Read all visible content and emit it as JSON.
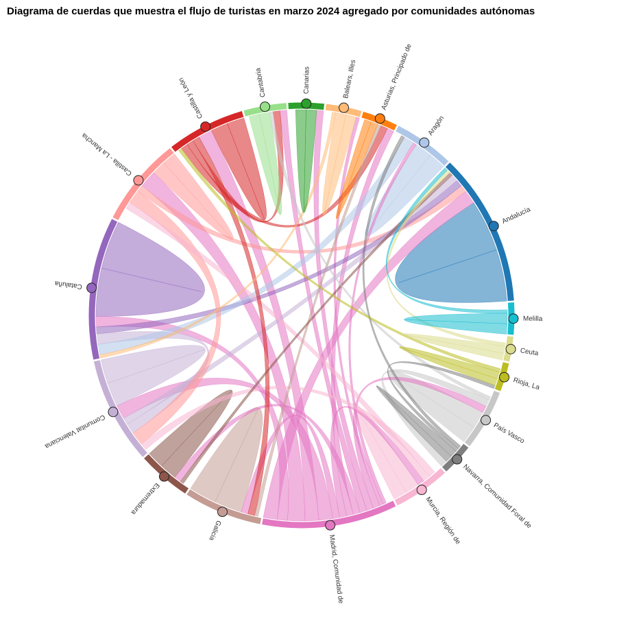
{
  "chart_data": {
    "type": "chord",
    "title": "Diagrama de cuerdas que muestra el flujo de turistas en marzo 2024 agregado por comunidades autónomas",
    "nodes": [
      {
        "name": "Andalucía",
        "color": "#1f77b4",
        "value": 43
      },
      {
        "name": "Aragón",
        "color": "#aec7e8",
        "value": 17
      },
      {
        "name": "Asturias, Principado de",
        "color": "#ff7f0e",
        "value": 10
      },
      {
        "name": "Balears, Illes",
        "color": "#ffbb78",
        "value": 10
      },
      {
        "name": "Canarias",
        "color": "#2ca02c",
        "value": 10
      },
      {
        "name": "Cantabria",
        "color": "#98df8a",
        "value": 12
      },
      {
        "name": "Castilla y León",
        "color": "#d62728",
        "value": 22
      },
      {
        "name": "Castilla - La Mancha",
        "color": "#ff9896",
        "value": 25
      },
      {
        "name": "Cataluña",
        "color": "#9467bd",
        "value": 40
      },
      {
        "name": "Comunitat Valenciana",
        "color": "#c5b0d5",
        "value": 30
      },
      {
        "name": "Extremadura",
        "color": "#8c564b",
        "value": 15
      },
      {
        "name": "Galicia",
        "color": "#c49c94",
        "value": 22
      },
      {
        "name": "Madrid, Comunidad de",
        "color": "#e377c2",
        "value": 38
      },
      {
        "name": "Murcia, Región de",
        "color": "#f7b6d2",
        "value": 16
      },
      {
        "name": "Navarra, Comunidad Foral de",
        "color": "#7f7f7f",
        "value": 9
      },
      {
        "name": "País Vasco",
        "color": "#c7c7c7",
        "value": 17
      },
      {
        "name": "Rioja, La",
        "color": "#bcbd22",
        "value": 8
      },
      {
        "name": "Ceuta",
        "color": "#dbdb8d",
        "value": 7
      },
      {
        "name": "Melilla",
        "color": "#17becf",
        "value": 9
      }
    ],
    "flows": [
      {
        "source": 0,
        "target": 0,
        "value": 15
      },
      {
        "source": 8,
        "target": 8,
        "value": 14
      },
      {
        "source": 9,
        "target": 9,
        "value": 7
      },
      {
        "source": 11,
        "target": 11,
        "value": 8
      },
      {
        "source": 6,
        "target": 6,
        "value": 5
      },
      {
        "source": 10,
        "target": 10,
        "value": 5
      },
      {
        "source": 1,
        "target": 1,
        "value": 5
      },
      {
        "source": 15,
        "target": 15,
        "value": 5
      },
      {
        "source": 7,
        "target": 7,
        "value": 4
      },
      {
        "source": 13,
        "target": 13,
        "value": 4
      },
      {
        "source": 12,
        "target": 0,
        "value": 4
      },
      {
        "source": 12,
        "target": 8,
        "value": 3
      },
      {
        "source": 12,
        "target": 7,
        "value": 5
      },
      {
        "source": 12,
        "target": 6,
        "value": 4
      },
      {
        "source": 12,
        "target": 9,
        "value": 4
      },
      {
        "source": 12,
        "target": 11,
        "value": 2
      },
      {
        "source": 12,
        "target": 13,
        "value": 2
      },
      {
        "source": 12,
        "target": 2,
        "value": 2
      },
      {
        "source": 12,
        "target": 10,
        "value": 2
      },
      {
        "source": 12,
        "target": 5,
        "value": 2
      },
      {
        "source": 12,
        "target": 4,
        "value": 2
      },
      {
        "source": 12,
        "target": 15,
        "value": 2
      },
      {
        "source": 12,
        "target": 3,
        "value": 1
      },
      {
        "source": 12,
        "target": 1,
        "value": 1
      },
      {
        "source": 7,
        "target": 0,
        "value": 2
      },
      {
        "source": 8,
        "target": 0,
        "value": 2
      },
      {
        "source": 9,
        "target": 0,
        "value": 2
      },
      {
        "source": 9,
        "target": 8,
        "value": 3
      },
      {
        "source": 1,
        "target": 8,
        "value": 3
      },
      {
        "source": 7,
        "target": 9,
        "value": 4
      },
      {
        "source": 13,
        "target": 7,
        "value": 2
      },
      {
        "source": 13,
        "target": 9,
        "value": 2
      },
      {
        "source": 6,
        "target": 11,
        "value": 2
      },
      {
        "source": 6,
        "target": 5,
        "value": 2
      },
      {
        "source": 6,
        "target": 2,
        "value": 2
      },
      {
        "source": 11,
        "target": 2,
        "value": 1
      },
      {
        "source": 10,
        "target": 0,
        "value": 1
      },
      {
        "source": 15,
        "target": 14,
        "value": 2
      },
      {
        "source": 15,
        "target": 5,
        "value": 1
      },
      {
        "source": 14,
        "target": 14,
        "value": 2
      },
      {
        "source": 14,
        "target": 16,
        "value": 1
      },
      {
        "source": 14,
        "target": 1,
        "value": 1
      },
      {
        "source": 16,
        "target": 16,
        "value": 2
      },
      {
        "source": 16,
        "target": 6,
        "value": 1
      },
      {
        "source": 17,
        "target": 17,
        "value": 2
      },
      {
        "source": 17,
        "target": 0,
        "value": 1
      },
      {
        "source": 18,
        "target": 18,
        "value": 3
      },
      {
        "source": 18,
        "target": 0,
        "value": 1
      },
      {
        "source": 2,
        "target": 2,
        "value": 2
      },
      {
        "source": 3,
        "target": 3,
        "value": 3
      },
      {
        "source": 3,
        "target": 8,
        "value": 1
      },
      {
        "source": 4,
        "target": 4,
        "value": 3
      },
      {
        "source": 5,
        "target": 5,
        "value": 3
      }
    ]
  }
}
